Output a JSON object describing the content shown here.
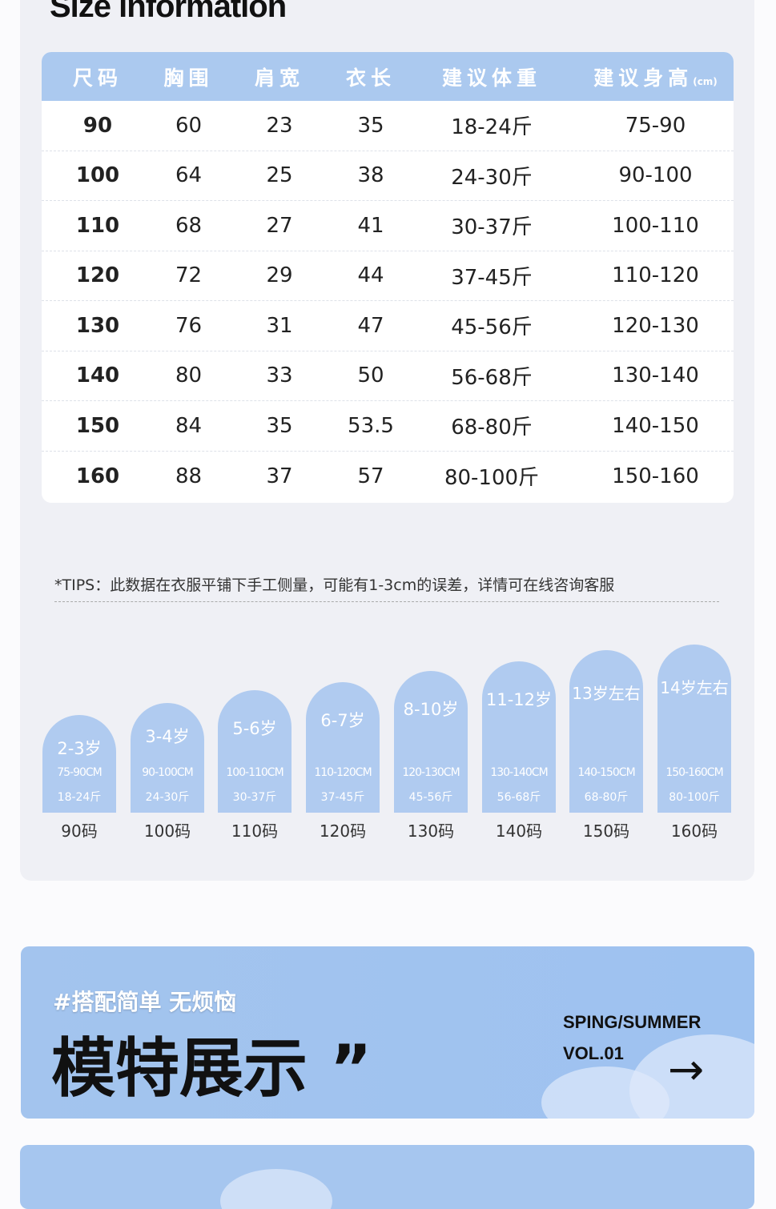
{
  "title": "Size information",
  "table": {
    "headers": [
      "尺码",
      "胸围",
      "肩宽",
      "衣长",
      "建议体重",
      "建议身高"
    ],
    "height_unit": "(cm)",
    "rows": [
      [
        "90",
        "60",
        "23",
        "35",
        "18-24斤",
        "75-90"
      ],
      [
        "100",
        "64",
        "25",
        "38",
        "24-30斤",
        "90-100"
      ],
      [
        "110",
        "68",
        "27",
        "41",
        "30-37斤",
        "100-110"
      ],
      [
        "120",
        "72",
        "29",
        "44",
        "37-45斤",
        "110-120"
      ],
      [
        "130",
        "76",
        "31",
        "47",
        "45-56斤",
        "120-130"
      ],
      [
        "140",
        "80",
        "33",
        "50",
        "56-68斤",
        "130-140"
      ],
      [
        "150",
        "84",
        "35",
        "53.5",
        "68-80斤",
        "140-150"
      ],
      [
        "160",
        "88",
        "37",
        "57",
        "80-100斤",
        "150-160"
      ]
    ]
  },
  "tips": "*TIPS：此数据在衣服平铺下手工侧量，可能有1-3cm的误差，详情可在线咨询客服",
  "sizes": [
    {
      "age": "2-3岁",
      "cm": "75-90CM",
      "weight": "18-24斤",
      "code": "90码"
    },
    {
      "age": "3-4岁",
      "cm": "90-100CM",
      "weight": "24-30斤",
      "code": "100码"
    },
    {
      "age": "5-6岁",
      "cm": "100-110CM",
      "weight": "30-37斤",
      "code": "110码"
    },
    {
      "age": "6-7岁",
      "cm": "110-120CM",
      "weight": "37-45斤",
      "code": "120码"
    },
    {
      "age": "8-10岁",
      "cm": "120-130CM",
      "weight": "45-56斤",
      "code": "130码"
    },
    {
      "age": "11-12岁",
      "cm": "130-140CM",
      "weight": "56-68斤",
      "code": "140码"
    },
    {
      "age": "13岁左右",
      "cm": "140-150CM",
      "weight": "68-80斤",
      "code": "150码"
    },
    {
      "age": "14岁左右",
      "cm": "150-160CM",
      "weight": "80-100斤",
      "code": "160码"
    }
  ],
  "banner": {
    "tag": "#搭配简单 无烦恼",
    "heading": "模特展示",
    "quote": "”",
    "season": "SPING/SUMMER",
    "vol": "VOL.01",
    "arrow_icon": "arrow-right-icon"
  },
  "colors": {
    "accent": "#abc9ef",
    "panel": "#eff0f5"
  }
}
